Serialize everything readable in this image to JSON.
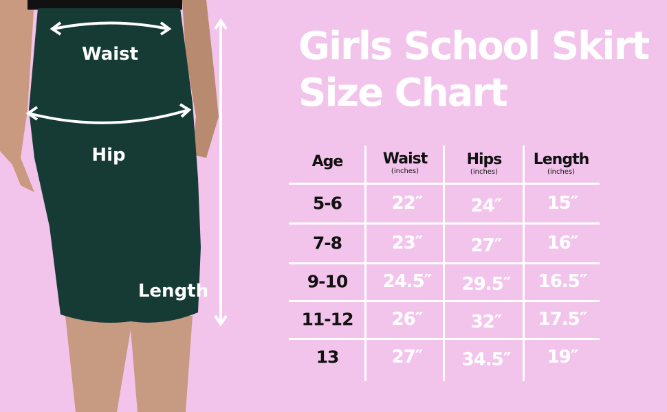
{
  "title": {
    "line1": "Girls School Skirt",
    "line2": "Size Chart"
  },
  "diagram_labels": {
    "waist": "Waist",
    "hip": "Hip",
    "length": "Length"
  },
  "colors": {
    "background": "#f3c4eb",
    "skirt": "#163b35",
    "text_values": "#ffffff",
    "text_headers": "#111111"
  },
  "table": {
    "headers": [
      {
        "label": "Age",
        "unit": ""
      },
      {
        "label": "Waist",
        "unit": "(inches)"
      },
      {
        "label": "Hips",
        "unit": "(inches)"
      },
      {
        "label": "Length",
        "unit": "(inches)"
      }
    ],
    "rows": [
      [
        "5-6",
        "22″",
        "24″",
        "15″"
      ],
      [
        "7-8",
        "23″",
        "27″",
        "16″"
      ],
      [
        "9-10",
        "24.5″",
        "29.5″",
        "16.5″"
      ],
      [
        "11-12",
        "26″",
        "32″",
        "17.5″"
      ],
      [
        "13",
        "27″",
        "34.5″",
        "19″"
      ]
    ]
  }
}
